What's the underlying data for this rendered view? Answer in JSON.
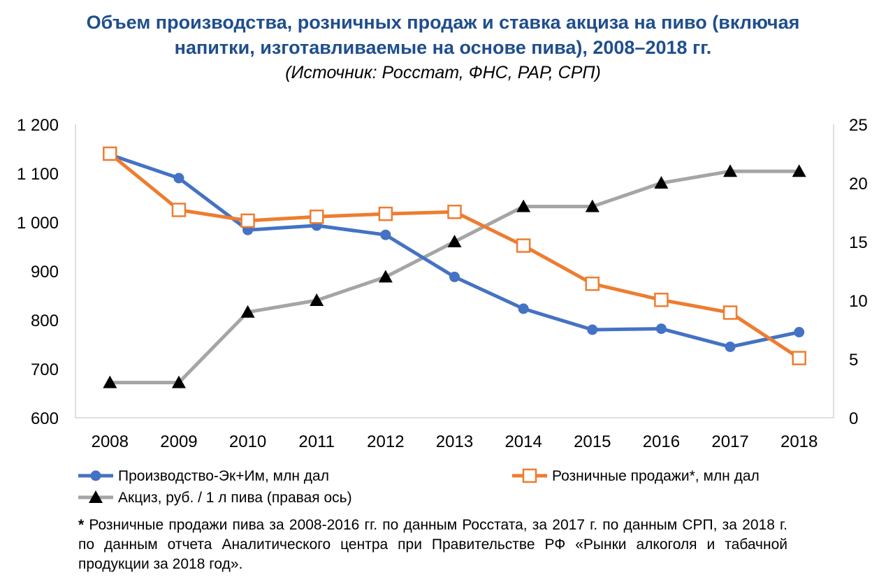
{
  "chart_data": {
    "type": "line",
    "title": "Объем производства, розничных продаж и ставка акциза на пиво (включая напитки, изготавливаемые на основе пива), 2008–2018 гг.",
    "title_lines": [
      "Объем производства, розничных продаж и ставка акциза на пиво (включая",
      "напитки, изготавливаемые на основе пива), 2008–2018 гг."
    ],
    "subtitle": "(Источник: Росстат, ФНС, РАР, СРП)",
    "x": [
      2008,
      2009,
      2010,
      2011,
      2012,
      2013,
      2014,
      2015,
      2016,
      2017,
      2018
    ],
    "x_tick_labels": [
      "2008",
      "2009",
      "2010",
      "2011",
      "2012",
      "2013",
      "2014",
      "2015",
      "2016",
      "2017",
      "2018"
    ],
    "y_left": {
      "min": 600,
      "max": 1200,
      "ticks": [
        600,
        700,
        800,
        900,
        1000,
        1100,
        1200
      ],
      "tick_labels": [
        "600",
        "700",
        "800",
        "900",
        "1 000",
        "1 100",
        "1 200"
      ]
    },
    "y_right": {
      "min": 0,
      "max": 25,
      "ticks": [
        0,
        5,
        10,
        15,
        20,
        25
      ],
      "tick_labels": [
        "0",
        "5",
        "10",
        "15",
        "20",
        "25"
      ]
    },
    "grid": false,
    "legend_position": "bottom",
    "series": [
      {
        "name": "Производство-Эк+Им, млн дал",
        "axis": "left",
        "color": "#4472C4",
        "marker": "circle",
        "values": [
          1138,
          1090,
          984,
          993,
          974,
          888,
          823,
          780,
          782,
          745,
          775
        ]
      },
      {
        "name": "Розничные продажи*, млн дал",
        "axis": "left",
        "color": "#ED7D31",
        "marker": "hollow-square",
        "values": [
          1140,
          1025,
          1003,
          1011,
          1017,
          1021,
          952,
          874,
          841,
          815,
          722
        ]
      },
      {
        "name": "Акциз, руб. / 1 л пива (правая ось)",
        "axis": "right",
        "color": "#A5A5A5",
        "marker": "triangle",
        "values": [
          3,
          3,
          9,
          10,
          12,
          15,
          18,
          18,
          20,
          21,
          21
        ]
      }
    ]
  },
  "footnote": {
    "marker": "*",
    "text": "Розничные продажи пива за 2008-2016 гг. по данным Росстата, за 2017 г. по данным СРП, за 2018 г. по данным отчета Аналитического центра при Правительстве РФ «Рынки алкоголя и табачной продукции за 2018 год»."
  }
}
